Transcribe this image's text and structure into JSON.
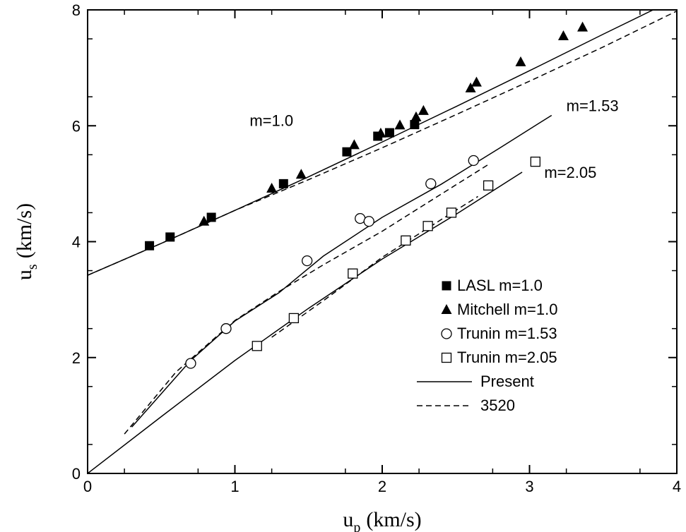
{
  "chart_data": {
    "type": "scatter",
    "xlabel": "u_p (km/s)",
    "xlabel_main": "u",
    "xlabel_sub": "p",
    "xlabel_unit": "(km/s)",
    "ylabel": "u_s (km/s)",
    "ylabel_main": "u",
    "ylabel_sub": "s",
    "ylabel_unit": "(km/s)",
    "xlim": [
      0,
      4
    ],
    "ylim": [
      0,
      8
    ],
    "xticks": [
      "0",
      "1",
      "2",
      "3",
      "4"
    ],
    "yticks": [
      "0",
      "2",
      "4",
      "6",
      "8"
    ],
    "grid": false,
    "legend_position": "lower-right",
    "annotations": [
      {
        "text": "m=1.0",
        "x": 1.1,
        "y": 6.0
      },
      {
        "text": "m=1.53",
        "x": 3.25,
        "y": 6.25
      },
      {
        "text": "m=2.05",
        "x": 3.1,
        "y": 5.1
      }
    ],
    "series": [
      {
        "name": "LASL  m=1.0",
        "marker": "filled-square",
        "x": [
          0.42,
          0.56,
          0.84,
          1.33,
          1.76,
          1.97,
          2.05,
          2.22
        ],
        "y": [
          3.93,
          4.08,
          4.42,
          5.0,
          5.55,
          5.82,
          5.88,
          6.02
        ]
      },
      {
        "name": "Mitchell m=1.0",
        "marker": "filled-triangle",
        "x": [
          0.79,
          1.25,
          1.45,
          1.81,
          1.99,
          2.12,
          2.23,
          2.28,
          2.6,
          2.64,
          2.94,
          3.23,
          3.36
        ],
        "y": [
          4.35,
          4.92,
          5.16,
          5.67,
          5.87,
          6.01,
          6.15,
          6.26,
          6.65,
          6.75,
          7.1,
          7.55,
          7.7
        ]
      },
      {
        "name": "Trunin m=1.53",
        "marker": "open-circle",
        "x": [
          0.7,
          0.94,
          1.49,
          1.85,
          1.91,
          2.33,
          2.62
        ],
        "y": [
          1.9,
          2.5,
          3.67,
          4.4,
          4.35,
          5.0,
          5.4
        ]
      },
      {
        "name": "Trunin m=2.05",
        "marker": "open-square",
        "x": [
          1.15,
          1.4,
          1.8,
          2.16,
          2.31,
          2.47,
          2.72,
          3.04
        ],
        "y": [
          2.2,
          2.68,
          3.45,
          4.02,
          4.27,
          4.5,
          4.97,
          5.38
        ]
      },
      {
        "name": "Present",
        "style": "solid",
        "lines": [
          {
            "x": [
              0.0,
              0.5,
              1.0,
              1.5,
              2.0,
              2.5,
              3.0,
              3.5,
              4.0
            ],
            "y": [
              3.42,
              3.97,
              4.54,
              5.12,
              5.72,
              6.33,
              6.95,
              7.58,
              8.2
            ]
          },
          {
            "x": [
              0.3,
              0.7,
              1.0,
              1.3,
              1.6,
              2.0,
              2.4,
              2.8,
              3.15
            ],
            "y": [
              0.8,
              1.95,
              2.63,
              3.12,
              3.75,
              4.42,
              4.99,
              5.62,
              6.18
            ]
          },
          {
            "x": [
              0.0,
              0.5,
              1.0,
              1.5,
              2.0,
              2.5,
              2.95
            ],
            "y": [
              0.0,
              0.98,
              1.95,
              2.85,
              3.7,
              4.47,
              5.2
            ]
          }
        ]
      },
      {
        "name": "3520",
        "style": "dashed",
        "lines": [
          {
            "x": [
              0.0,
              0.5,
              1.0,
              1.5,
              2.0,
              2.5,
              3.0,
              3.5,
              4.0
            ],
            "y": [
              3.42,
              3.97,
              4.54,
              5.07,
              5.62,
              6.19,
              6.77,
              7.36,
              7.98
            ]
          },
          {
            "x": [
              0.25,
              0.6,
              1.0,
              1.3,
              1.6,
              2.0,
              2.4,
              2.72
            ],
            "y": [
              0.68,
              1.75,
              2.64,
              3.14,
              3.6,
              4.18,
              4.82,
              5.33
            ]
          },
          {
            "x": [
              1.25,
              1.6,
              2.0,
              2.4,
              2.65
            ],
            "y": [
              2.35,
              2.98,
              3.73,
              4.38,
              4.78
            ]
          }
        ]
      }
    ]
  }
}
